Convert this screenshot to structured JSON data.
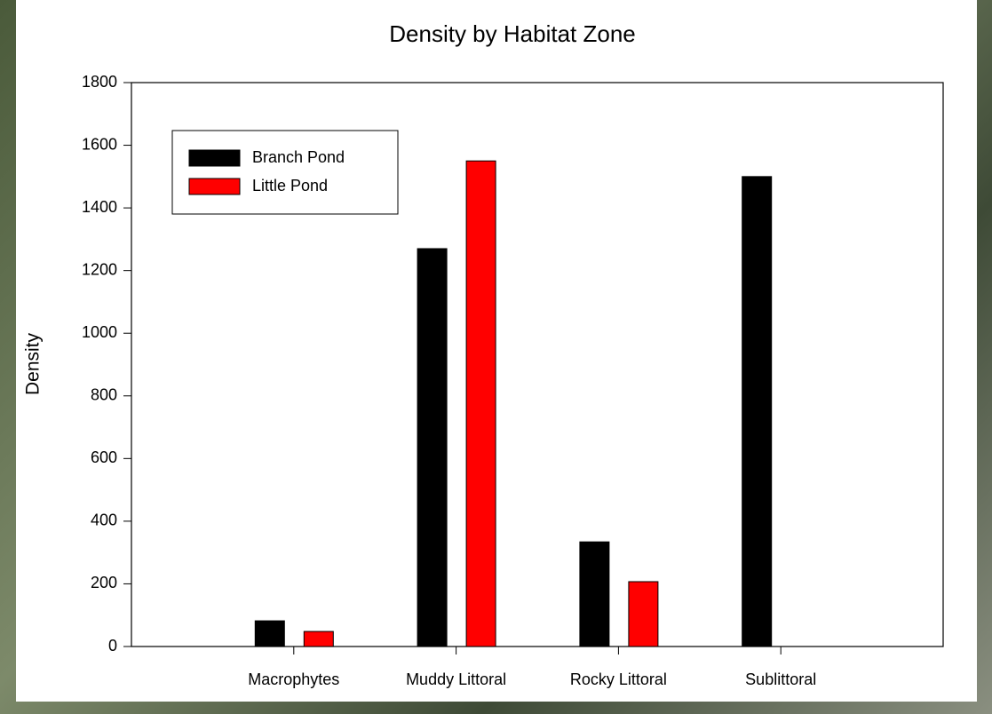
{
  "chart_data": {
    "type": "bar",
    "title": "Density by Habitat Zone",
    "y_label": "Density",
    "categories": [
      "Macrophytes",
      "Muddy Littoral",
      "Rocky Littoral",
      "Sublittoral"
    ],
    "series": [
      {
        "name": "Branch Pond",
        "color": "#000000",
        "values": [
          82,
          1270,
          334,
          1500
        ]
      },
      {
        "name": "Little Pond",
        "color": "#ff0000",
        "values": [
          48,
          1550,
          207,
          null
        ]
      }
    ],
    "ylim": [
      0,
      1800
    ],
    "yticks": [
      0,
      200,
      400,
      600,
      800,
      1000,
      1200,
      1400,
      1600,
      1800
    ],
    "grid": false,
    "legend": "upper-left"
  }
}
